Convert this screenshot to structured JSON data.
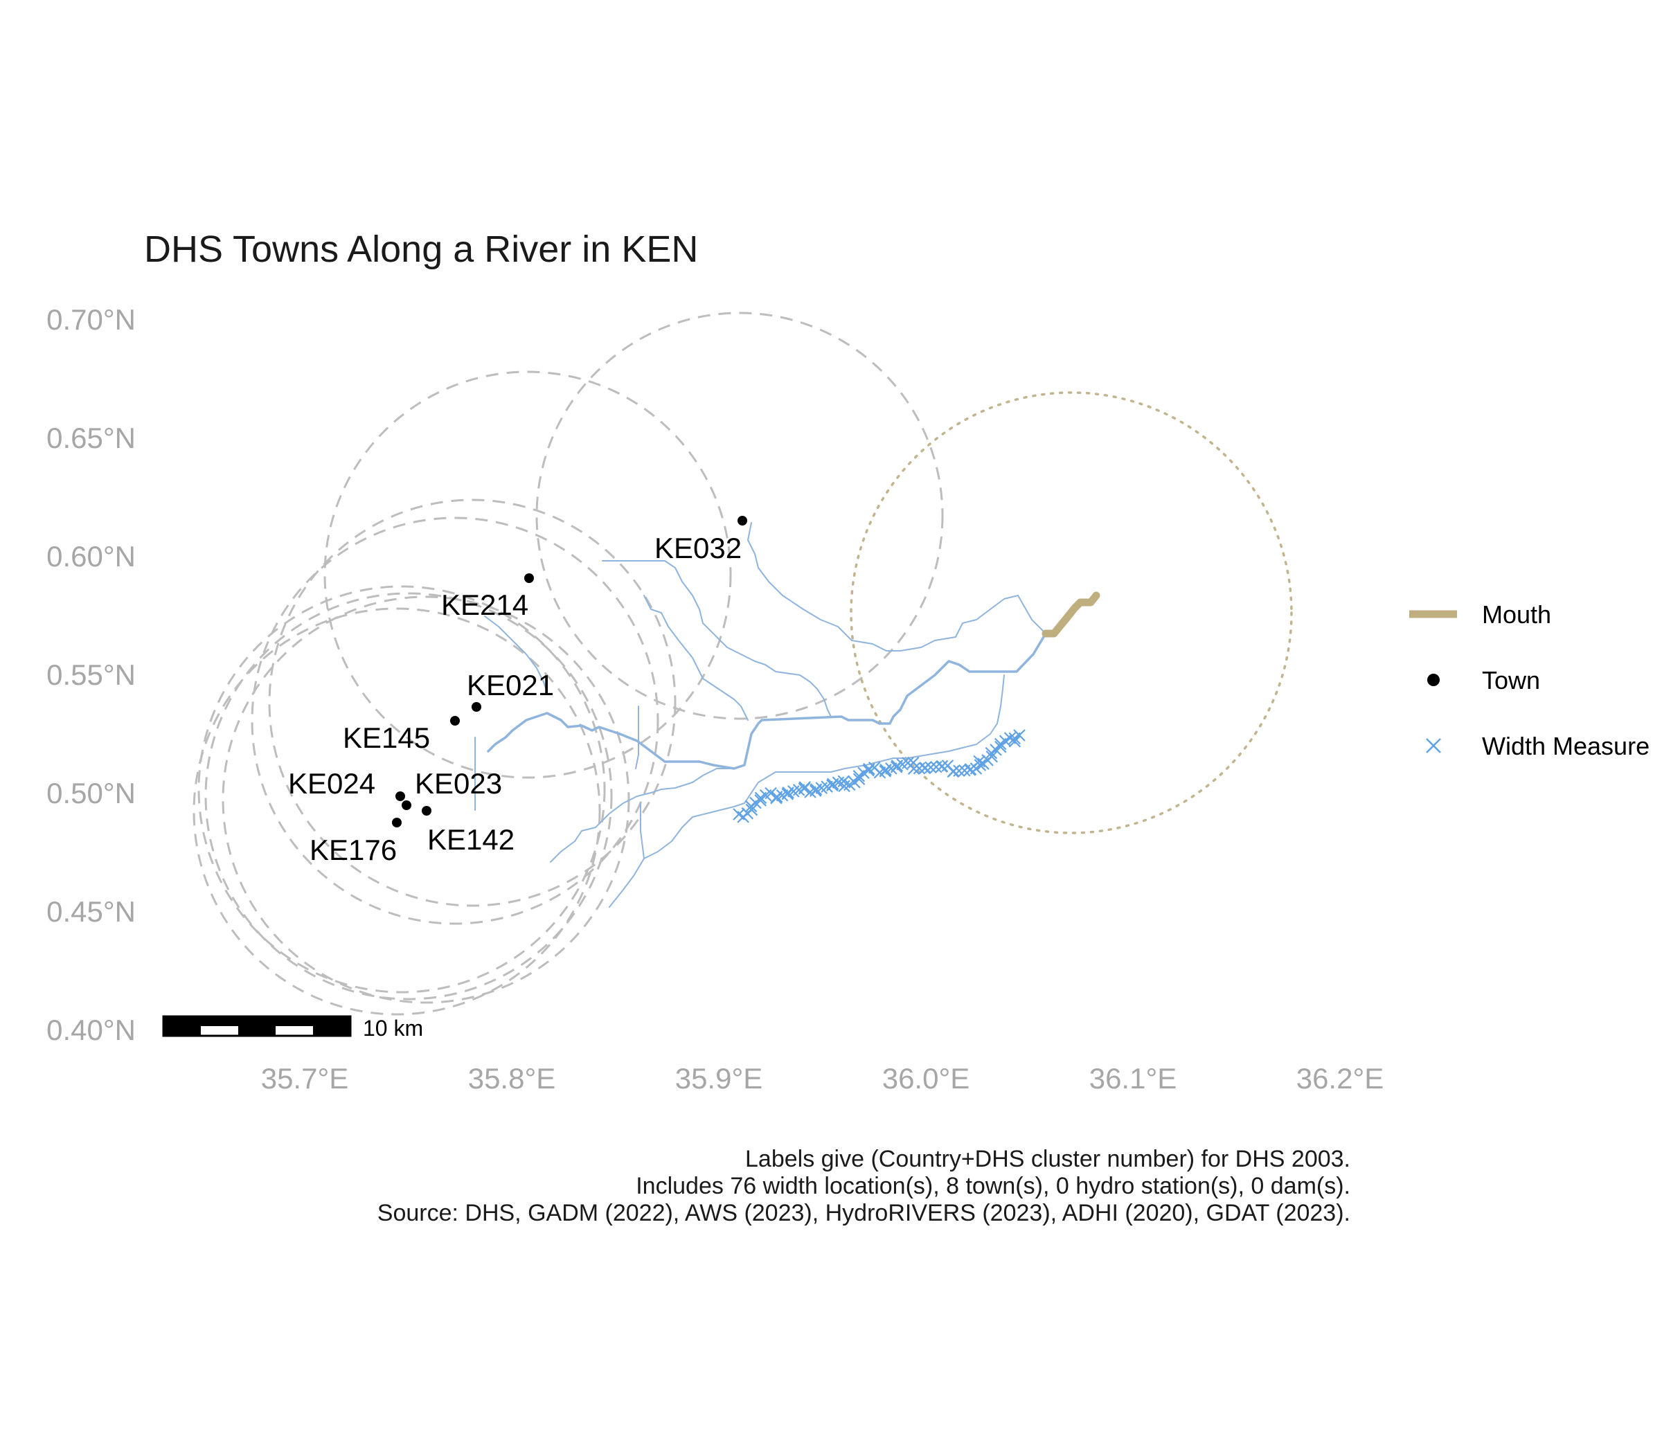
{
  "title": "DHS Towns Along a River in KEN",
  "axes": {
    "x_ticks": [
      {
        "value": 35.7,
        "label": "35.7°E"
      },
      {
        "value": 35.8,
        "label": "35.8°E"
      },
      {
        "value": 35.9,
        "label": "35.9°E"
      },
      {
        "value": 36.0,
        "label": "36.0°E"
      },
      {
        "value": 36.1,
        "label": "36.1°E"
      },
      {
        "value": 36.2,
        "label": "36.2°E"
      }
    ],
    "y_ticks": [
      {
        "value": 0.4,
        "label": "0.40°N"
      },
      {
        "value": 0.45,
        "label": "0.45°N"
      },
      {
        "value": 0.5,
        "label": "0.50°N"
      },
      {
        "value": 0.55,
        "label": "0.55°N"
      },
      {
        "value": 0.6,
        "label": "0.60°N"
      },
      {
        "value": 0.65,
        "label": "0.65°N"
      },
      {
        "value": 0.7,
        "label": "0.70°N"
      }
    ],
    "xlim": [
      35.625,
      36.225
    ],
    "ylim": [
      0.4,
      0.7
    ]
  },
  "towns": [
    {
      "id": "KE032",
      "lon": 35.91,
      "lat": 0.615
    },
    {
      "id": "KE214",
      "lon": 35.808,
      "lat": 0.591
    },
    {
      "id": "KE021",
      "lon": 35.781,
      "lat": 0.536
    },
    {
      "id": "KE145",
      "lon": 35.771,
      "lat": 0.531
    },
    {
      "id": "KE024",
      "lon": 35.745,
      "lat": 0.498
    },
    {
      "id": "KE023",
      "lon": 35.748,
      "lat": 0.495
    },
    {
      "id": "KE142",
      "lon": 35.758,
      "lat": 0.493
    },
    {
      "id": "KE176",
      "lon": 35.743,
      "lat": 0.488
    }
  ],
  "colors": {
    "town": "#000000",
    "river": "#8fb4dd",
    "width_measure": "#5fa2e6",
    "mouth": "#bfae7e",
    "buffer": "#bdbdbd",
    "mouth_buffer": "#c2b48f"
  },
  "legend": {
    "mouth": "Mouth",
    "town": "Town",
    "width_measure": "Width Measure"
  },
  "scale_bar": {
    "label": "10 km"
  },
  "caption": {
    "line1": "Labels give (Country+DHS cluster number) for DHS 2003.",
    "line2": "Includes 76 width location(s), 8 town(s), 0 hydro station(s), 0 dam(s).",
    "line3": "Source: DHS, GADM (2022), AWS (2023), HydroRIVERS (2023), ADHI (2020), GDAT (2023)."
  }
}
